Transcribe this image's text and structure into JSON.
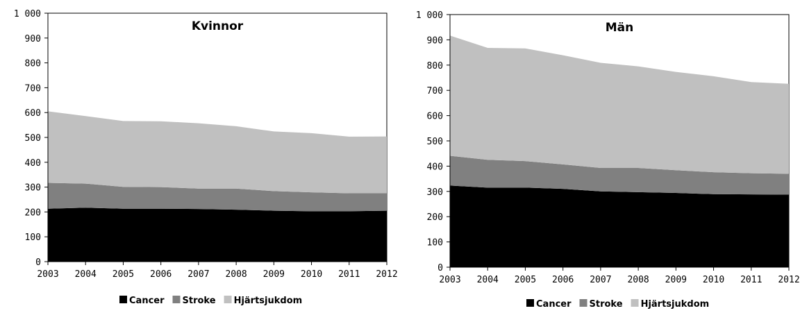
{
  "series_colors": {
    "Cancer": "#000000",
    "Stroke": "#808080",
    "Hjärtsjukdom": "#c0c0c0"
  },
  "chart_data": [
    {
      "type": "area",
      "stacked": true,
      "title": "Kvinnor",
      "xlabel": "",
      "ylabel": "",
      "x": [
        "2003",
        "2004",
        "2005",
        "2006",
        "2007",
        "2008",
        "2009",
        "2010",
        "2011",
        "2012"
      ],
      "y_ticks": [
        "0",
        "100",
        "200",
        "300",
        "400",
        "500",
        "600",
        "700",
        "800",
        "900",
        "1 000"
      ],
      "ylim": [
        0,
        1000
      ],
      "grid": false,
      "legend": "bottom",
      "series": [
        {
          "name": "Cancer",
          "values": [
            213,
            217,
            213,
            213,
            212,
            209,
            205,
            203,
            203,
            205
          ]
        },
        {
          "name": "Stroke",
          "values": [
            104,
            97,
            88,
            87,
            82,
            85,
            79,
            76,
            72,
            70
          ]
        },
        {
          "name": "Hjärtsjukdom",
          "values": [
            288,
            272,
            265,
            265,
            263,
            251,
            240,
            238,
            228,
            229
          ]
        }
      ]
    },
    {
      "type": "area",
      "stacked": true,
      "title": "Män",
      "xlabel": "",
      "ylabel": "",
      "x": [
        "2003",
        "2004",
        "2005",
        "2006",
        "2007",
        "2008",
        "2009",
        "2010",
        "2011",
        "2012"
      ],
      "y_ticks": [
        "0",
        "100",
        "200",
        "300",
        "400",
        "500",
        "600",
        "700",
        "800",
        "900",
        "1 000"
      ],
      "ylim": [
        0,
        1000
      ],
      "grid": false,
      "legend": "bottom",
      "series": [
        {
          "name": "Cancer",
          "values": [
            323,
            315,
            315,
            310,
            300,
            297,
            294,
            289,
            288,
            287
          ]
        },
        {
          "name": "Stroke",
          "values": [
            118,
            110,
            105,
            97,
            93,
            96,
            90,
            87,
            84,
            83
          ]
        },
        {
          "name": "Hjärtsjukdom",
          "values": [
            476,
            443,
            446,
            432,
            416,
            402,
            389,
            380,
            361,
            356
          ]
        }
      ]
    }
  ]
}
